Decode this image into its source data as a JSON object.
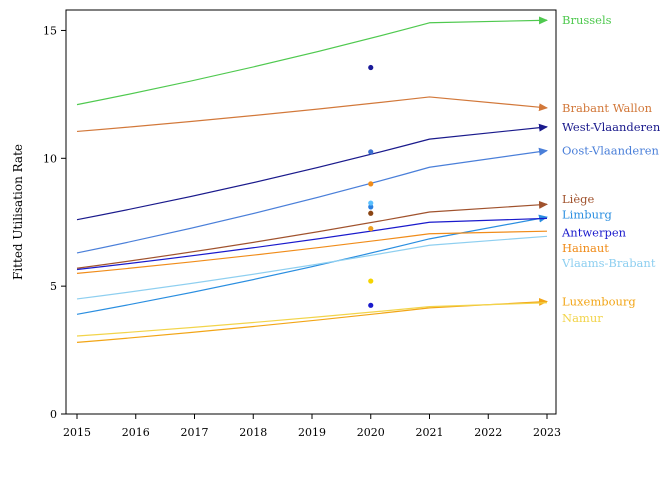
{
  "chart_data": {
    "type": "line",
    "title": "",
    "xlabel": "",
    "ylabel": "Fitted Utilisation Rate",
    "xlim": [
      2015,
      2023
    ],
    "ylim": [
      0,
      15.8
    ],
    "x_ticks": [
      "2015",
      "2016",
      "2017",
      "2018",
      "2019",
      "2020",
      "2021",
      "2022",
      "2023"
    ],
    "y_ticks": [
      "0",
      "5",
      "10",
      "15"
    ],
    "grid": false,
    "legend": "direct-labels-right",
    "x": [
      2015,
      2021,
      2023
    ],
    "series": [
      {
        "name": "Brussels",
        "color": "#4fc94f",
        "values": [
          12.1,
          15.3,
          15.4
        ],
        "point_2020": 13.55,
        "point_color": "#1a1a99"
      },
      {
        "name": "Brabant Wallon",
        "color": "#d2783a",
        "values": [
          11.05,
          12.4,
          11.97
        ],
        "point_2020": null,
        "point_color": null
      },
      {
        "name": "West-Vlaanderen",
        "color": "#1a1a8c",
        "values": [
          7.6,
          10.75,
          11.23
        ],
        "point_2020": null,
        "point_color": null
      },
      {
        "name": "Oost-Vlaanderen",
        "color": "#4a7fd9",
        "values": [
          6.3,
          9.65,
          10.3
        ],
        "point_2020": 10.25,
        "point_color": "#3a6fd0"
      },
      {
        "name": "Liège",
        "color": "#a0522d",
        "values": [
          5.7,
          7.9,
          8.2
        ],
        "point_2020": 7.85,
        "point_color": "#8b4513"
      },
      {
        "name": "Limburg",
        "color": "#2a8ee0",
        "values": [
          3.9,
          6.85,
          7.7
        ],
        "point_2020": 8.1,
        "point_color": "#2a7fe0"
      },
      {
        "name": "Antwerpen",
        "color": "#1a1acc",
        "values": [
          5.65,
          7.5,
          7.65
        ],
        "point_2020": 4.25,
        "point_color": "#1a1acc"
      },
      {
        "name": "Hainaut",
        "color": "#f08c1a",
        "values": [
          5.5,
          7.05,
          7.15
        ],
        "point_2020": 9.0,
        "point_color": "#f08c1a"
      },
      {
        "name": "Vlaams-Brabant",
        "color": "#8ecff0",
        "values": [
          4.5,
          6.6,
          6.95
        ],
        "point_2020": 8.25,
        "point_color": "#5bc0ff"
      },
      {
        "name": "Luxembourg",
        "color": "#f2a516",
        "values": [
          2.8,
          4.15,
          4.4
        ],
        "point_2020": 7.25,
        "point_color": "#f0a020"
      },
      {
        "name": "Namur",
        "color": "#f2d44a",
        "values": [
          3.05,
          4.2,
          4.35
        ],
        "point_2020": 5.2,
        "point_color": "#f5d400"
      }
    ],
    "arrow_series": [
      "Brussels",
      "Brabant Wallon",
      "West-Vlaanderen",
      "Oost-Vlaanderen",
      "Liège",
      "Limburg",
      "Luxembourg"
    ]
  }
}
